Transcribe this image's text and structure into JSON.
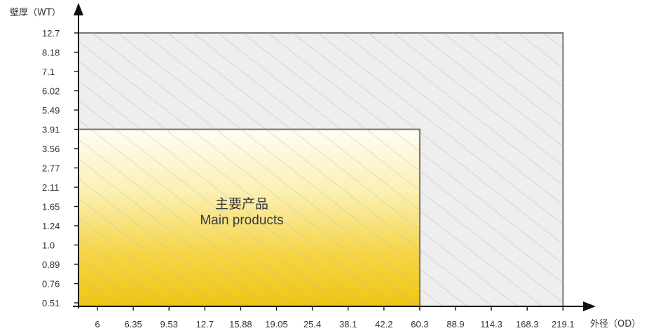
{
  "chart_data": {
    "type": "area",
    "title": "",
    "xlabel": "外径（OD）",
    "ylabel": "壁厚（WT）",
    "x_ticks": [
      "6",
      "6.35",
      "9.53",
      "12.7",
      "15.88",
      "19.05",
      "25.4",
      "38.1",
      "42.2",
      "60.3",
      "88.9",
      "114.3",
      "168.3",
      "219.1"
    ],
    "y_ticks": [
      "0.51",
      "0.76",
      "0.89",
      "1.0",
      "1.24",
      "1.65",
      "2.11",
      "2.77",
      "3.56",
      "3.91",
      "5.49",
      "6.02",
      "7.1",
      "8.18",
      "12.7"
    ],
    "regions": [
      {
        "name": "full_range",
        "od_max": 219.1,
        "wt_max": 12.7,
        "fill": "#eeeeee",
        "hatch": true
      },
      {
        "name": "main_products",
        "label_cn": "主要产品",
        "label_en": "Main products",
        "od_max": 60.3,
        "wt_max": 3.91,
        "fill_top": "#fffdf2",
        "fill_bottom": "#f1c819",
        "hatch": true
      }
    ],
    "grid": false,
    "colors": {
      "axis": "#111111",
      "region_border": "#777777",
      "hatch": "#bbbbbb"
    }
  }
}
